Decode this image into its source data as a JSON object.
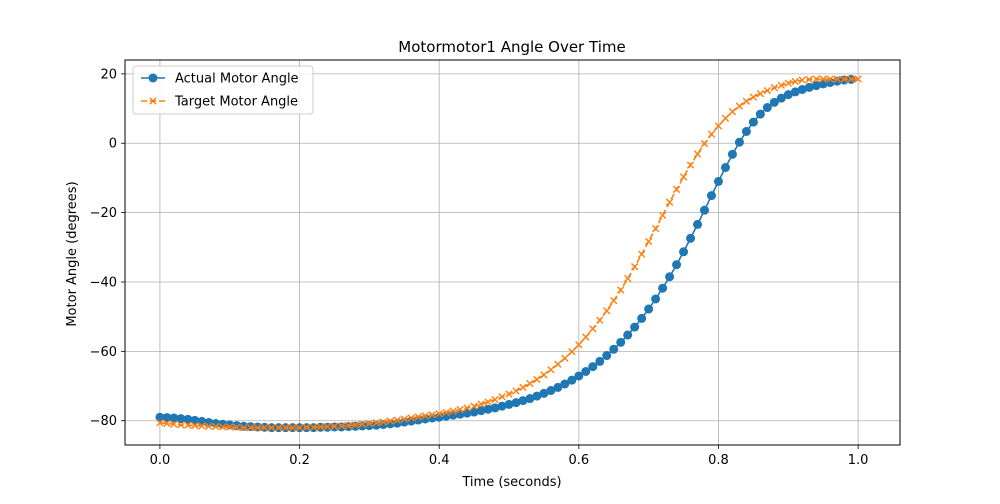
{
  "chart_data": {
    "type": "line",
    "title": "Motormotor1 Angle Over Time",
    "xlabel": "Time (seconds)",
    "ylabel": "Motor Angle (degrees)",
    "xlim": [
      -0.05,
      1.06
    ],
    "ylim": [
      -87,
      24
    ],
    "xticks": [
      0.0,
      0.2,
      0.4,
      0.6,
      0.8,
      1.0
    ],
    "xtick_labels": [
      "0.0",
      "0.2",
      "0.4",
      "0.6",
      "0.8",
      "1.0"
    ],
    "yticks": [
      -80,
      -60,
      -40,
      -20,
      0,
      20
    ],
    "ytick_labels": [
      "−80",
      "−60",
      "−40",
      "−20",
      "0",
      "20"
    ],
    "grid": true,
    "legend_position": "upper-left",
    "x_start": 0.0,
    "x_step": 0.01,
    "series": [
      {
        "name": "Actual Motor Angle",
        "color": "#1f77b4",
        "marker": "circle",
        "linestyle": "solid",
        "values": [
          -79.0,
          -79.1,
          -79.2,
          -79.4,
          -79.6,
          -79.9,
          -80.2,
          -80.5,
          -80.8,
          -81.0,
          -81.2,
          -81.4,
          -81.6,
          -81.7,
          -81.8,
          -81.9,
          -82.0,
          -82.0,
          -82.0,
          -82.0,
          -82.0,
          -82.0,
          -82.0,
          -81.9,
          -81.9,
          -81.8,
          -81.8,
          -81.7,
          -81.6,
          -81.5,
          -81.4,
          -81.3,
          -81.1,
          -80.9,
          -80.7,
          -80.4,
          -80.1,
          -79.8,
          -79.5,
          -79.2,
          -79.0,
          -78.7,
          -78.4,
          -78.1,
          -77.8,
          -77.5,
          -77.1,
          -76.7,
          -76.3,
          -75.8,
          -75.3,
          -74.8,
          -74.2,
          -73.6,
          -72.9,
          -72.1,
          -71.3,
          -70.4,
          -69.4,
          -68.3,
          -67.1,
          -65.8,
          -64.4,
          -62.9,
          -61.2,
          -59.4,
          -57.4,
          -55.3,
          -53.0,
          -50.5,
          -47.8,
          -44.9,
          -41.8,
          -38.5,
          -35.0,
          -31.3,
          -27.4,
          -23.4,
          -19.3,
          -15.1,
          -11.0,
          -7.0,
          -3.2,
          0.3,
          3.4,
          6.1,
          8.4,
          10.3,
          11.8,
          13.0,
          14.0,
          14.8,
          15.5,
          16.1,
          16.6,
          17.1,
          17.5,
          17.9,
          18.2,
          18.4
        ]
      },
      {
        "name": "Target Motor Angle",
        "color": "#ff7f0e",
        "marker": "x",
        "linestyle": "dashed",
        "values": [
          -80.6,
          -80.8,
          -81.0,
          -81.2,
          -81.3,
          -81.4,
          -81.5,
          -81.6,
          -81.7,
          -81.8,
          -81.8,
          -81.9,
          -82.0,
          -82.0,
          -82.0,
          -82.0,
          -82.0,
          -82.0,
          -82.0,
          -82.0,
          -82.0,
          -81.9,
          -81.9,
          -81.8,
          -81.7,
          -81.6,
          -81.5,
          -81.4,
          -81.2,
          -81.0,
          -80.8,
          -80.6,
          -80.4,
          -80.1,
          -79.8,
          -79.5,
          -79.2,
          -78.9,
          -78.6,
          -78.3,
          -78.0,
          -77.6,
          -77.2,
          -76.8,
          -76.3,
          -75.8,
          -75.2,
          -74.6,
          -73.9,
          -73.1,
          -72.3,
          -71.4,
          -70.4,
          -69.3,
          -68.1,
          -66.8,
          -65.3,
          -63.7,
          -62.0,
          -60.1,
          -58.1,
          -55.9,
          -53.5,
          -51.0,
          -48.3,
          -45.4,
          -42.3,
          -39.0,
          -35.6,
          -32.0,
          -28.3,
          -24.6,
          -20.8,
          -17.0,
          -13.3,
          -9.7,
          -6.3,
          -3.1,
          -0.1,
          2.6,
          5.0,
          7.2,
          9.1,
          10.7,
          12.1,
          13.3,
          14.3,
          15.2,
          16.0,
          16.7,
          17.3,
          17.8,
          18.2,
          18.4,
          18.5,
          18.5,
          18.5,
          18.5,
          18.5,
          18.5,
          18.5
        ]
      }
    ]
  }
}
